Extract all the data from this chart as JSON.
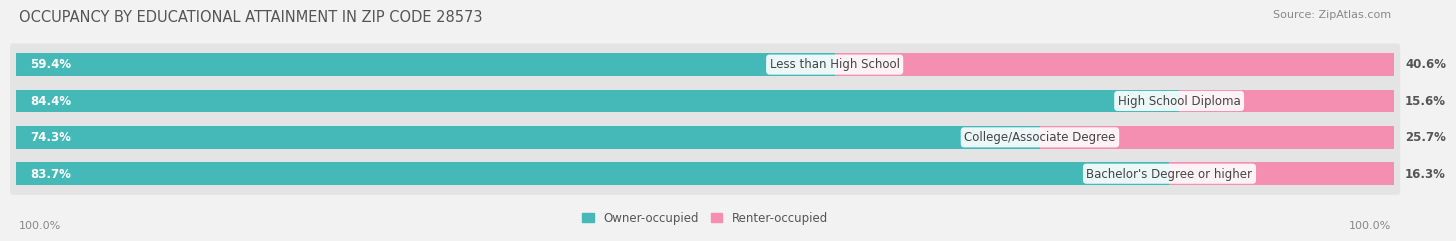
{
  "title": "OCCUPANCY BY EDUCATIONAL ATTAINMENT IN ZIP CODE 28573",
  "source": "Source: ZipAtlas.com",
  "categories": [
    "Less than High School",
    "High School Diploma",
    "College/Associate Degree",
    "Bachelor's Degree or higher"
  ],
  "owner_pct": [
    59.4,
    84.4,
    74.3,
    83.7
  ],
  "renter_pct": [
    40.6,
    15.6,
    25.7,
    16.3
  ],
  "owner_color": "#45B8B8",
  "renter_color": "#F48FB1",
  "bg_color": "#F2F2F2",
  "row_bg_color": "#E4E4E4",
  "title_fontsize": 10.5,
  "label_fontsize": 8.5,
  "tick_fontsize": 8,
  "source_fontsize": 8,
  "legend_fontsize": 8.5,
  "x_left_label": "100.0%",
  "x_right_label": "100.0%"
}
